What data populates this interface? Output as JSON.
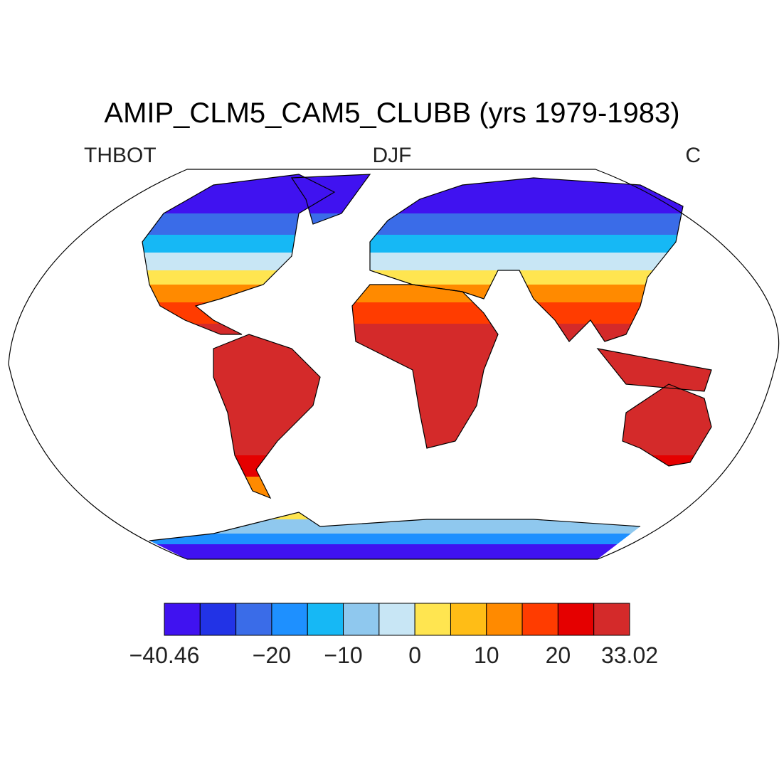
{
  "title": "AMIP_CLM5_CAM5_CLUBB (yrs 1979-1983)",
  "left_label": "THBOT",
  "center_label": "DJF",
  "right_label": "C",
  "colorbar": {
    "colors": [
      "#4012f0",
      "#2233e6",
      "#3a6ce8",
      "#1e90ff",
      "#16b8f5",
      "#8fc8ee",
      "#c8e6f5",
      "#ffe550",
      "#ffbd16",
      "#ff8a00",
      "#ff3c00",
      "#e50000",
      "#d42a2a"
    ],
    "labels": [
      {
        "value": -40.46,
        "label": "−40.46"
      },
      {
        "value": -20,
        "label": "−20"
      },
      {
        "value": -10,
        "label": "−10"
      },
      0,
      10,
      20,
      33.02
    ]
  }
}
